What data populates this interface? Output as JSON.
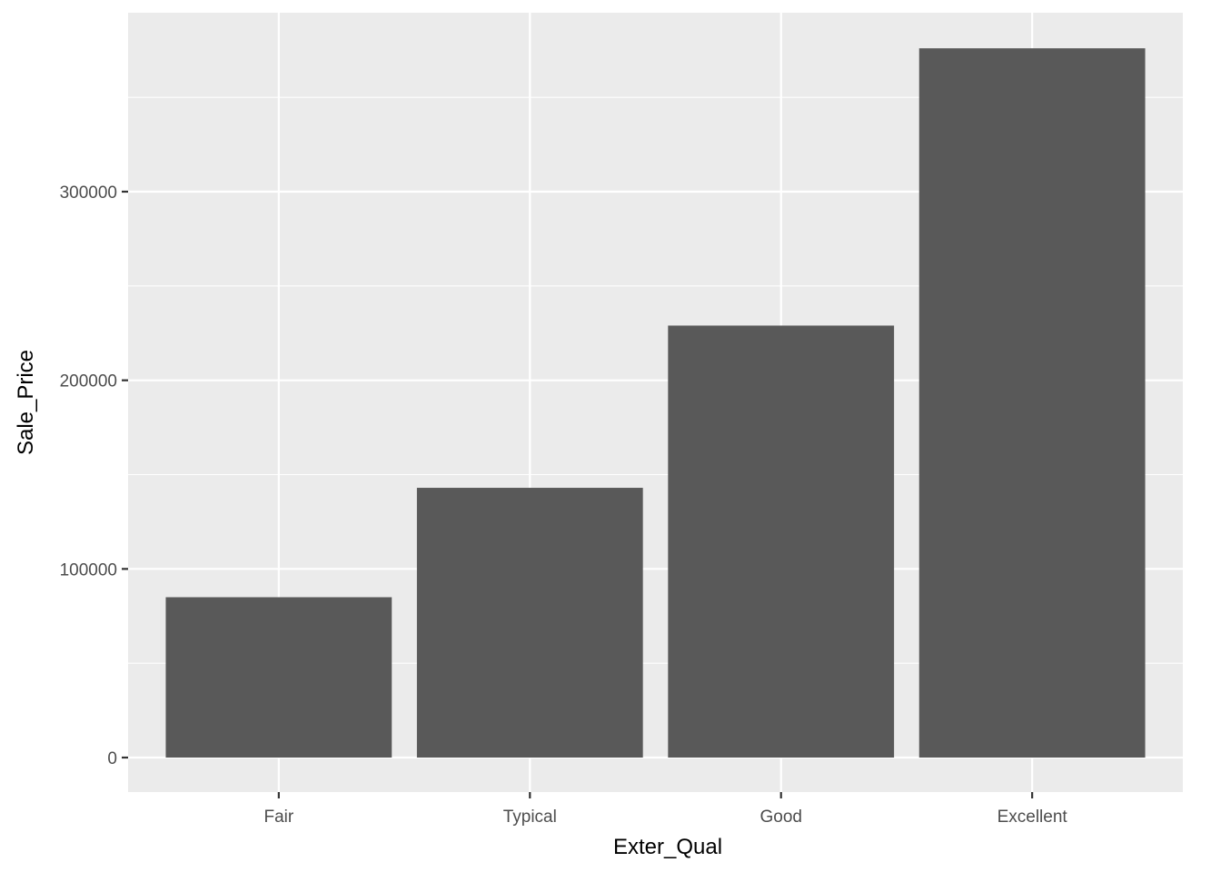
{
  "chart_data": {
    "type": "bar",
    "title": "",
    "xlabel": "Exter_Qual",
    "ylabel": "Sale_Price",
    "categories": [
      "Fair",
      "Typical",
      "Good",
      "Excellent"
    ],
    "values": [
      85000,
      143000,
      229000,
      376000
    ],
    "ylim": [
      0,
      395000
    ],
    "yticks": [
      0,
      100000,
      200000,
      300000
    ],
    "ytick_labels": [
      "0",
      "100000",
      "200000",
      "300000"
    ],
    "grid": true,
    "legend": "none",
    "colors": {
      "bar": "#595959",
      "panel": "#ebebeb",
      "grid": "#ffffff",
      "tick_text": "#4d4d4d",
      "tick_mark": "#333333"
    }
  }
}
